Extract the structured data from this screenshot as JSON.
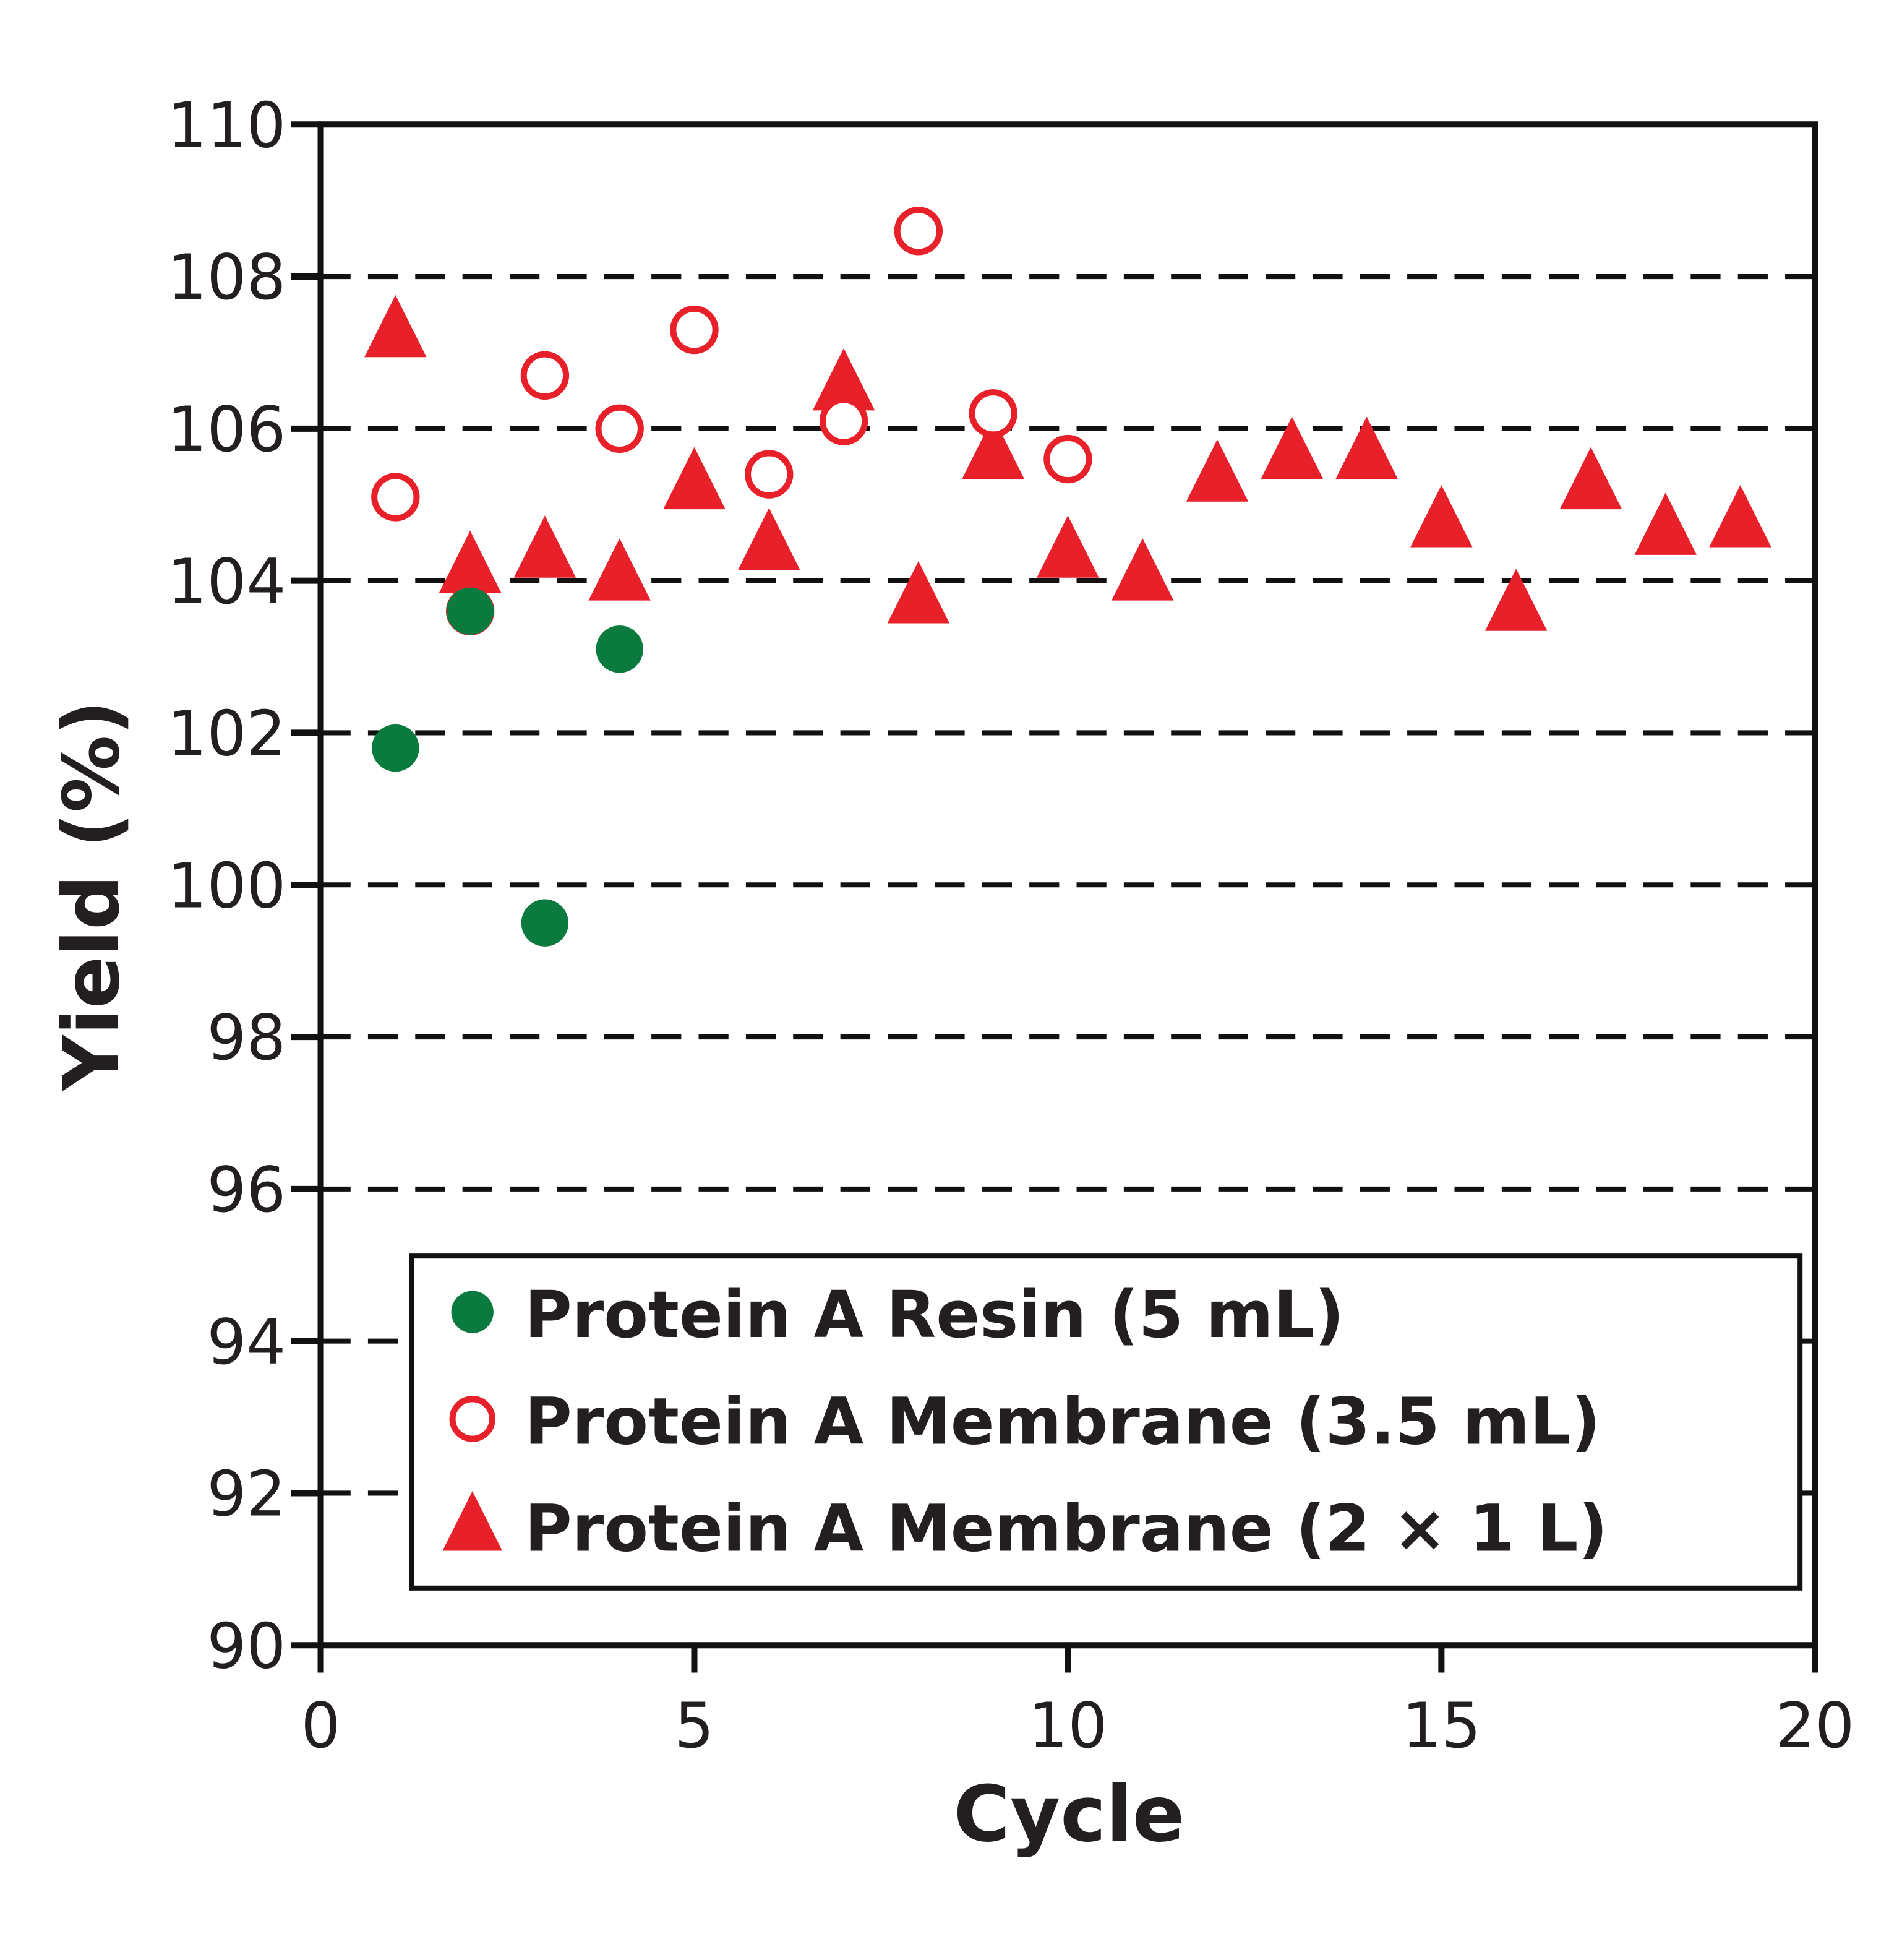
{
  "chart_data": {
    "type": "scatter",
    "title": "",
    "xlabel": "Cycle",
    "ylabel": "Yield (%)",
    "xlim": [
      0,
      20
    ],
    "ylim": [
      90,
      110
    ],
    "xticks": [
      0,
      5,
      10,
      15,
      20
    ],
    "yticks": [
      90,
      92,
      94,
      96,
      98,
      100,
      102,
      104,
      106,
      108,
      110
    ],
    "grid": "horizontal dashed",
    "legend_position": "bottom-right",
    "series": [
      {
        "name": "Protein A Resin (5 mL)",
        "marker": "filled-circle",
        "color": "#0b7a3e",
        "x": [
          1,
          2,
          3,
          4
        ],
        "y": [
          101.8,
          103.6,
          99.5,
          103.1
        ]
      },
      {
        "name": "Protein A Membrane (3.5 mL)",
        "marker": "open-circle",
        "color": "#e8202a",
        "x": [
          1,
          2,
          3,
          4,
          5,
          6,
          7,
          8,
          9,
          10
        ],
        "y": [
          105.1,
          103.6,
          106.7,
          106.0,
          107.3,
          105.4,
          106.1,
          108.6,
          106.2,
          105.6
        ]
      },
      {
        "name": "Protein A Membrane (2 × 1 L)",
        "marker": "filled-triangle",
        "color": "#e8202a",
        "x": [
          1,
          2,
          3,
          4,
          5,
          6,
          7,
          8,
          9,
          10,
          11,
          12,
          13,
          14,
          15,
          16,
          17,
          18,
          19
        ],
        "y": [
          107.3,
          104.2,
          104.4,
          104.1,
          105.3,
          104.5,
          106.6,
          103.8,
          105.7,
          104.4,
          104.1,
          105.4,
          105.7,
          105.7,
          104.8,
          103.7,
          105.3,
          104.7,
          104.8
        ]
      }
    ]
  }
}
